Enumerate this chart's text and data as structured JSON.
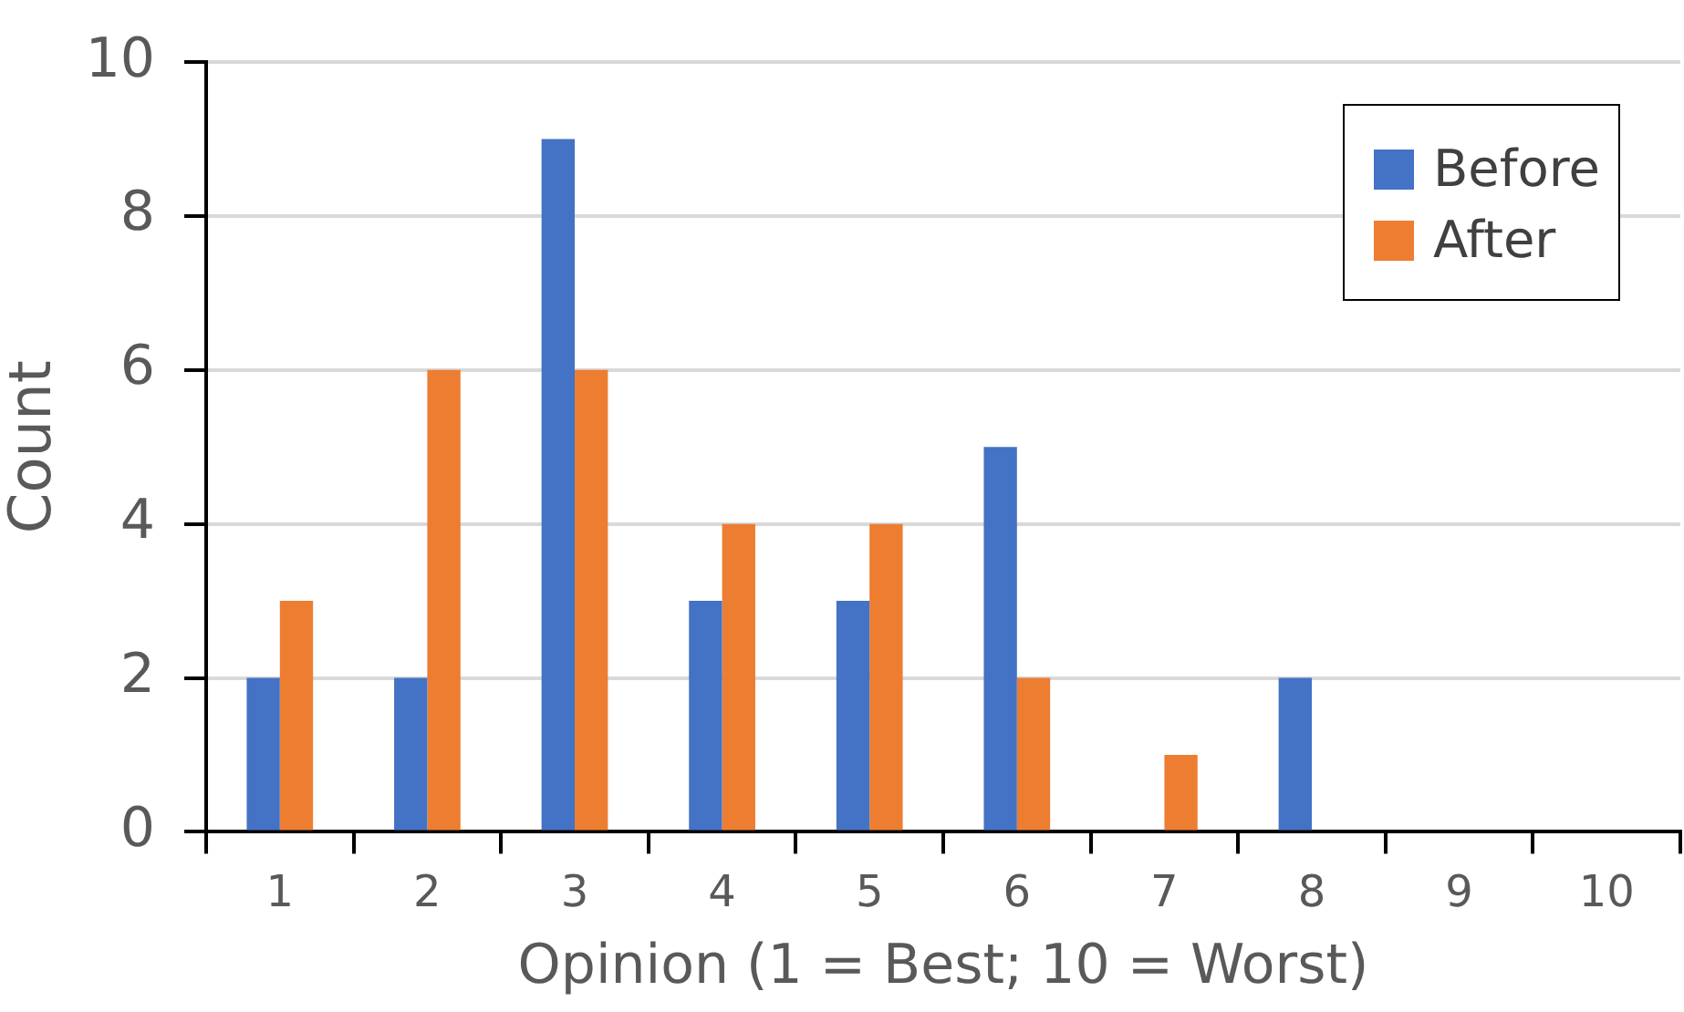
{
  "chart_data": {
    "type": "bar",
    "xlabel": "Opinion (1 = Best; 10 = Worst)",
    "ylabel": "Count",
    "categories": [
      "1",
      "2",
      "3",
      "4",
      "5",
      "6",
      "7",
      "8",
      "9",
      "10"
    ],
    "series": [
      {
        "name": "Before",
        "color": "#4472c4",
        "values": [
          2,
          2,
          9,
          3,
          3,
          5,
          0,
          2,
          0,
          0
        ]
      },
      {
        "name": "After",
        "color": "#ed7d31",
        "values": [
          3,
          6,
          6,
          4,
          4,
          2,
          1,
          0,
          0,
          0
        ]
      }
    ],
    "ylim": [
      0,
      10
    ],
    "yticks": [
      0,
      2,
      4,
      6,
      8,
      10
    ],
    "grid": "y",
    "legend": "top right"
  }
}
